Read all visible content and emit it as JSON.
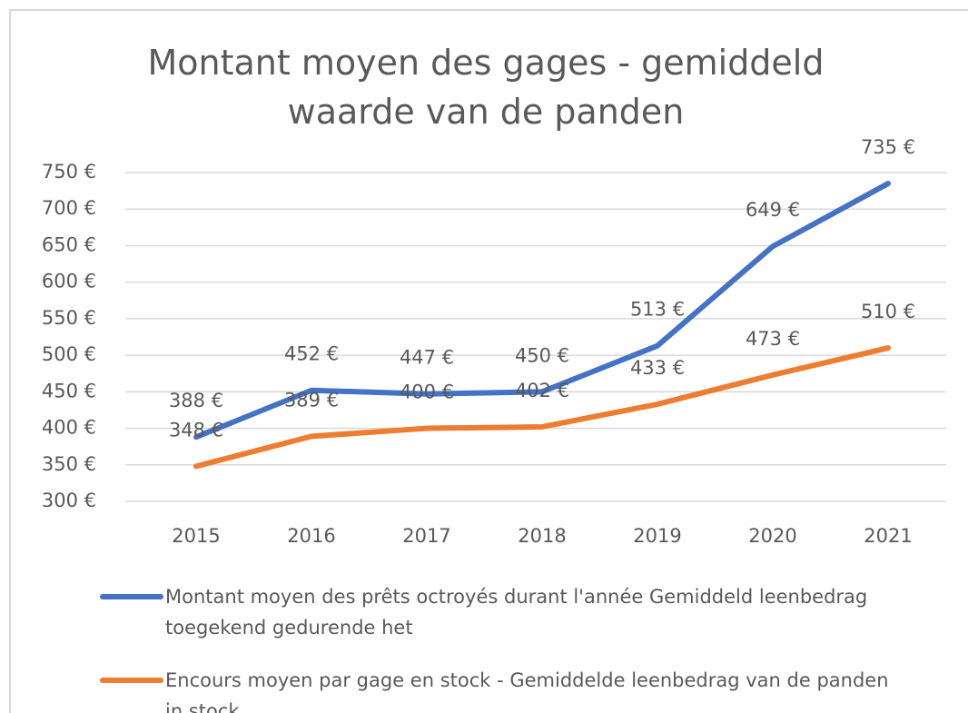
{
  "chart_data": {
    "type": "line",
    "title": "Montant moyen des gages - gemiddeld waarde van de panden",
    "categories": [
      "2015",
      "2016",
      "2017",
      "2018",
      "2019",
      "2020",
      "2021"
    ],
    "series": [
      {
        "name": "Montant moyen des prêts octroyés durant l'année Gemiddeld leenbedrag toegekend gedurende het",
        "color": "#4472c4",
        "values": [
          388,
          452,
          447,
          450,
          513,
          649,
          735
        ],
        "value_labels": [
          "388 €",
          "452 €",
          "447 €",
          "450 €",
          "513 €",
          "649 €",
          "735 €"
        ]
      },
      {
        "name": "Encours moyen par gage en stock - Gemiddelde leenbedrag van de panden in stock",
        "color": "#ed7d31",
        "values": [
          348,
          389,
          400,
          402,
          433,
          473,
          510
        ],
        "value_labels": [
          "348 €",
          "389 €",
          "400 €",
          "402 €",
          "433 €",
          "473 €",
          "510 €"
        ]
      }
    ],
    "ylim": [
      300,
      750
    ],
    "yticks": [
      {
        "value": 300,
        "label": "300 €"
      },
      {
        "value": 350,
        "label": "350 €"
      },
      {
        "value": 400,
        "label": "400 €"
      },
      {
        "value": 450,
        "label": "450 €"
      },
      {
        "value": 500,
        "label": "500 €"
      },
      {
        "value": 550,
        "label": "550 €"
      },
      {
        "value": 600,
        "label": "600 €"
      },
      {
        "value": 650,
        "label": "650 €"
      },
      {
        "value": 700,
        "label": "700 €"
      },
      {
        "value": 750,
        "label": "750 €"
      }
    ],
    "grid": true,
    "legend": "bottom"
  }
}
